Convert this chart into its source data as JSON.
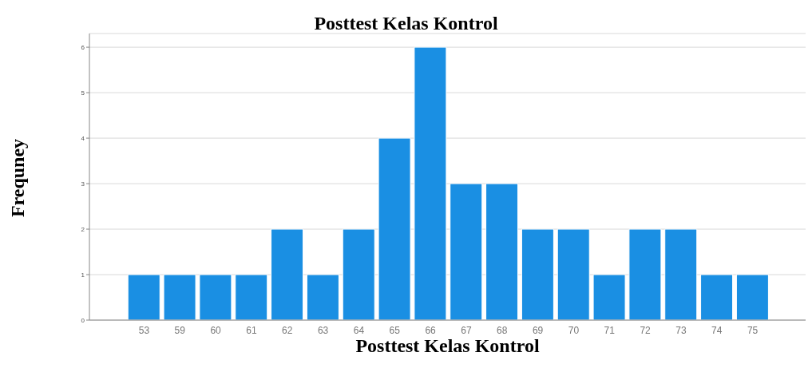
{
  "chart_data": {
    "type": "bar",
    "title": "Posttest Kelas Kontrol",
    "xlabel": "Posttest Kelas Kontrol",
    "ylabel": "Frequney",
    "categories": [
      "53",
      "59",
      "60",
      "61",
      "62",
      "63",
      "64",
      "65",
      "66",
      "67",
      "68",
      "69",
      "70",
      "71",
      "72",
      "73",
      "74",
      "75"
    ],
    "values": [
      1,
      1,
      1,
      1,
      2,
      1,
      2,
      4,
      6,
      3,
      3,
      2,
      2,
      1,
      2,
      2,
      1,
      1
    ],
    "color": "#1a8fe3",
    "ylim": [
      0,
      6.3
    ],
    "yticks": [
      0,
      1,
      2,
      3,
      4,
      5,
      6
    ],
    "grid": "y"
  }
}
